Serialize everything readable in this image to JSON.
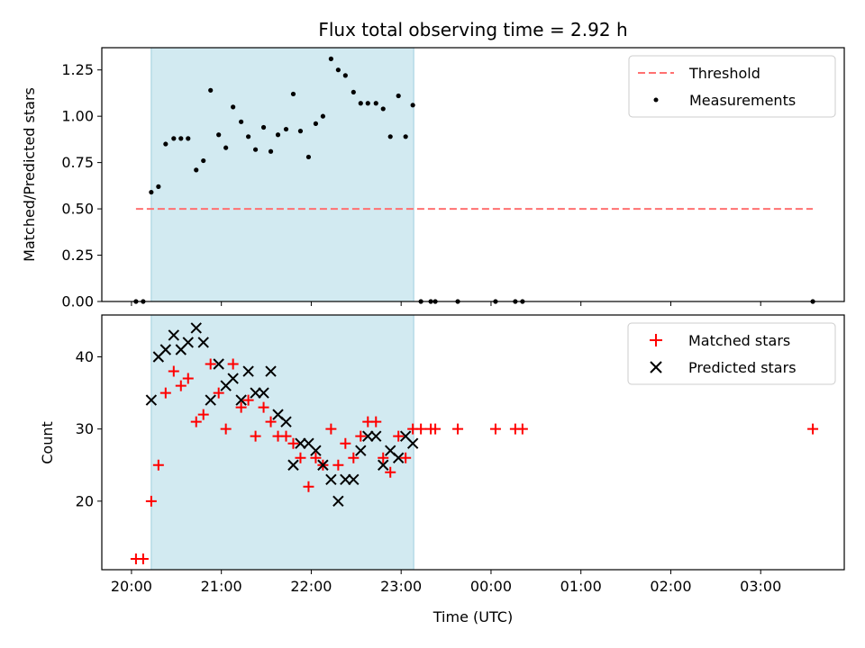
{
  "chart_data": {
    "type": "scatter",
    "title": "Flux total observing time = 2.92 h",
    "xlabel": "Time (UTC)",
    "x_ticks": [
      "20:00",
      "21:00",
      "22:00",
      "23:00",
      "00:00",
      "01:00",
      "02:00",
      "03:00"
    ],
    "x_tick_hours": [
      20,
      21,
      22,
      23,
      24,
      25,
      26,
      27
    ],
    "xlim": [
      19.67,
      27.93
    ],
    "shaded_span": [
      20.22,
      23.14
    ],
    "shade_color": "#add8e6",
    "top": {
      "ylabel": "Matched/Predicted stars",
      "ylim": [
        0,
        1.37
      ],
      "y_ticks": [
        "0.00",
        "0.25",
        "0.50",
        "0.75",
        "1.00",
        "1.25"
      ],
      "y_tick_values": [
        0,
        0.25,
        0.5,
        0.75,
        1.0,
        1.25
      ],
      "threshold": {
        "name": "Threshold",
        "value": 0.5,
        "x_range": [
          20.05,
          27.58
        ],
        "color": "#ff7070"
      },
      "series": [
        {
          "name": "Measurements",
          "color": "#000000",
          "x": [
            20.05,
            20.13,
            20.22,
            20.3,
            20.38,
            20.47,
            20.55,
            20.63,
            20.72,
            20.8,
            20.88,
            20.97,
            21.05,
            21.13,
            21.22,
            21.3,
            21.38,
            21.47,
            21.55,
            21.63,
            21.72,
            21.8,
            21.88,
            21.97,
            22.05,
            22.13,
            22.22,
            22.3,
            22.38,
            22.47,
            22.55,
            22.63,
            22.72,
            22.8,
            22.88,
            22.97,
            23.05,
            23.13,
            23.22,
            23.33,
            23.38,
            23.63,
            24.05,
            24.27,
            24.35,
            27.58
          ],
          "y": [
            0.0,
            0.0,
            0.59,
            0.62,
            0.85,
            0.88,
            0.88,
            0.88,
            0.71,
            0.76,
            1.14,
            0.9,
            0.83,
            1.05,
            0.97,
            0.89,
            0.82,
            0.94,
            0.81,
            0.9,
            0.93,
            1.12,
            0.92,
            0.78,
            0.96,
            1.0,
            1.31,
            1.25,
            1.22,
            1.13,
            1.07,
            1.07,
            1.07,
            1.04,
            0.89,
            1.11,
            0.89,
            1.06,
            0.0,
            0.0,
            0.0,
            0.0,
            0.0,
            0.0,
            0.0,
            0.0
          ]
        }
      ]
    },
    "bottom": {
      "ylabel": "Count",
      "ylim": [
        10.5,
        45.8
      ],
      "y_ticks": [
        "20",
        "30",
        "40"
      ],
      "y_tick_values": [
        20,
        30,
        40
      ],
      "series": [
        {
          "name": "Matched stars",
          "marker": "plus",
          "color": "#ff0000",
          "x": [
            20.05,
            20.13,
            20.22,
            20.3,
            20.38,
            20.47,
            20.55,
            20.63,
            20.72,
            20.8,
            20.88,
            20.97,
            21.05,
            21.13,
            21.22,
            21.3,
            21.38,
            21.47,
            21.55,
            21.63,
            21.72,
            21.8,
            21.88,
            21.97,
            22.05,
            22.13,
            22.22,
            22.3,
            22.38,
            22.47,
            22.55,
            22.63,
            22.72,
            22.8,
            22.88,
            22.97,
            23.05,
            23.13,
            23.22,
            23.33,
            23.38,
            23.63,
            24.05,
            24.27,
            24.35,
            27.58
          ],
          "y": [
            12,
            12,
            20,
            25,
            35,
            38,
            36,
            37,
            31,
            32,
            39,
            35,
            30,
            39,
            33,
            34,
            29,
            33,
            31,
            29,
            29,
            28,
            26,
            22,
            26,
            25,
            30,
            25,
            28,
            26,
            29,
            31,
            31,
            26,
            24,
            29,
            26,
            30,
            30,
            30,
            30,
            30,
            30,
            30,
            30,
            30
          ]
        },
        {
          "name": "Predicted stars",
          "marker": "x",
          "color": "#000000",
          "x": [
            20.22,
            20.3,
            20.38,
            20.47,
            20.55,
            20.63,
            20.72,
            20.8,
            20.88,
            20.97,
            21.05,
            21.13,
            21.22,
            21.3,
            21.38,
            21.47,
            21.55,
            21.63,
            21.72,
            21.8,
            21.88,
            21.97,
            22.05,
            22.13,
            22.22,
            22.3,
            22.38,
            22.47,
            22.55,
            22.63,
            22.72,
            22.8,
            22.88,
            22.97,
            23.05,
            23.13
          ],
          "y": [
            34,
            40,
            41,
            43,
            41,
            42,
            44,
            42,
            34,
            39,
            36,
            37,
            34,
            38,
            35,
            35,
            38,
            32,
            31,
            25,
            28,
            28,
            27,
            25,
            23,
            20,
            23,
            23,
            27,
            29,
            29,
            25,
            27,
            26,
            29,
            28
          ]
        }
      ]
    }
  }
}
